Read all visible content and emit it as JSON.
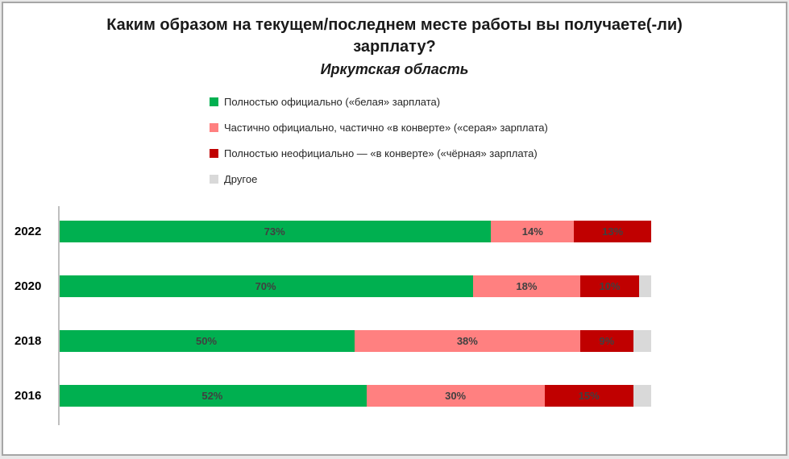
{
  "frame": {
    "background": "#ffffff",
    "border_color": "#a6a6a6"
  },
  "chart_data": {
    "type": "bar",
    "orientation": "horizontal-stacked",
    "title": "Каким образом на текущем/последнем месте работы вы получаете(-ли) зарплату?",
    "subtitle": "Иркутская область",
    "categories": [
      "2022",
      "2020",
      "2018",
      "2016"
    ],
    "series": [
      {
        "name": "Полностью официально («белая» зарплата)",
        "color": "#00B050",
        "values": [
          73,
          70,
          50,
          52
        ],
        "show_labels": true
      },
      {
        "name": "Частично официально, частично «в конверте» («серая» зарплата)",
        "color": "#FF8080",
        "values": [
          14,
          18,
          38,
          30
        ],
        "show_labels": true
      },
      {
        "name": "Полностью неофициально — «в конверте» («чёрная» зарплата)",
        "color": "#C00000",
        "values": [
          13,
          10,
          9,
          15
        ],
        "show_labels": true
      },
      {
        "name": "Другое",
        "color": "#D9D9D9",
        "values": [
          0,
          2,
          3,
          3
        ],
        "show_labels": false
      }
    ],
    "value_suffix": "%",
    "xlim": [
      0,
      100
    ],
    "legend_position": "top",
    "grid": false
  }
}
